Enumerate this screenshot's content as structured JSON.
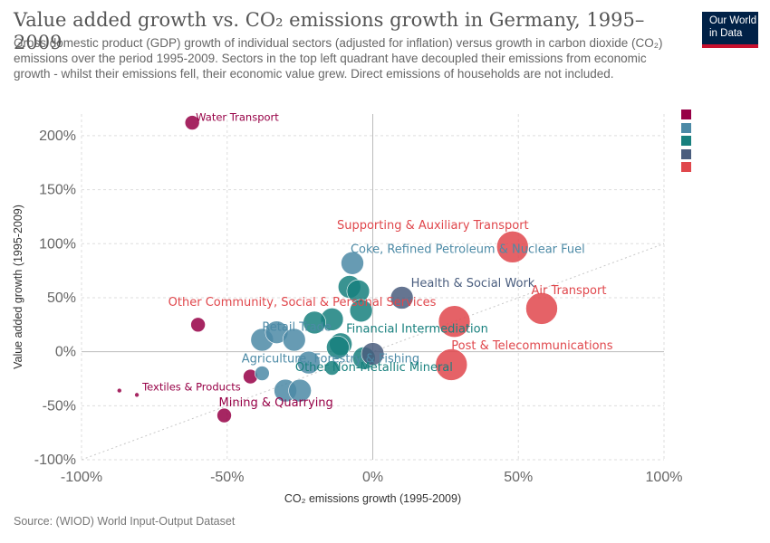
{
  "header": {
    "title": "Value added growth vs. CO₂ emissions growth in Germany, 1995–2009",
    "subtitle": "Gross domestic product (GDP) growth of individual sectors (adjusted for inflation) versus growth in carbon dioxide (CO₂) emissions over the period 1995-2009. Sectors in the top left quadrant have decoupled their emissions from economic growth - whilst their emissions fell, their economic value grew. Direct emissions of households are not included."
  },
  "logo": {
    "line1": "Our World",
    "line2": "in Data",
    "bg_color": "#002147",
    "accent_color": "#c8102e"
  },
  "footer": {
    "source": "Source: (WIOD) World Input-Output Dataset"
  },
  "legend": {
    "colors": [
      "#970046",
      "#4c8aa6",
      "#18807e",
      "#4a5d7e",
      "#e0474c"
    ]
  },
  "chart_data": {
    "type": "scatter",
    "title": "Value added growth vs. CO₂ emissions growth in Germany, 1995–2009",
    "xlabel": "CO₂ emissions growth (1995-2009)",
    "ylabel": "Value added growth (1995-2009)",
    "xlim": [
      -100,
      100
    ],
    "ylim": [
      -100,
      220
    ],
    "x_ticks": [
      -100,
      -50,
      0,
      50,
      100
    ],
    "y_ticks": [
      -100,
      -50,
      0,
      50,
      100,
      150,
      200
    ],
    "x_tick_labels": [
      "-100%",
      "-50%",
      "0%",
      "50%",
      "100%"
    ],
    "y_tick_labels": [
      "-100%",
      "-50%",
      "0%",
      "50%",
      "100%",
      "150%",
      "200%"
    ],
    "grid": true,
    "reference_line": "diagonal y = x (dotted)",
    "points": [
      {
        "x": -62,
        "y": 212,
        "size": "small",
        "color": "#970046",
        "label": "Water Transport"
      },
      {
        "x": -60,
        "y": 25,
        "size": "small",
        "color": "#970046",
        "label": ""
      },
      {
        "x": -87,
        "y": -36,
        "size": "tiny",
        "color": "#970046",
        "label": ""
      },
      {
        "x": -81,
        "y": -40,
        "size": "tiny",
        "color": "#970046",
        "label": "Textiles & Products"
      },
      {
        "x": -42,
        "y": -23,
        "size": "small",
        "color": "#970046",
        "label": ""
      },
      {
        "x": -51,
        "y": -59,
        "size": "small",
        "color": "#970046",
        "label": "Mining & Quarrying"
      },
      {
        "x": -7,
        "y": 82,
        "size": "medium",
        "color": "#4c8aa6",
        "label": "Coke, Refined Petroleum & Nuclear Fuel"
      },
      {
        "x": -38,
        "y": 11,
        "size": "medium",
        "color": "#4c8aa6",
        "label": "Retail Trade"
      },
      {
        "x": -33,
        "y": 18,
        "size": "medium",
        "color": "#4c8aa6",
        "label": ""
      },
      {
        "x": -27,
        "y": 11,
        "size": "medium",
        "color": "#4c8aa6",
        "label": ""
      },
      {
        "x": -38,
        "y": -20,
        "size": "small",
        "color": "#4c8aa6",
        "label": ""
      },
      {
        "x": -30,
        "y": -36,
        "size": "medium",
        "color": "#4c8aa6",
        "label": ""
      },
      {
        "x": -25,
        "y": -36,
        "size": "medium",
        "color": "#4c8aa6",
        "label": ""
      },
      {
        "x": -22,
        "y": -10,
        "size": "medium",
        "color": "#4c8aa6",
        "label": "Agriculture, Forestry & Fishing"
      },
      {
        "x": -8,
        "y": 60,
        "size": "medium",
        "color": "#18807e",
        "label": ""
      },
      {
        "x": -5,
        "y": 56,
        "size": "medium",
        "color": "#18807e",
        "label": ""
      },
      {
        "x": -4,
        "y": 38,
        "size": "medium",
        "color": "#18807e",
        "label": ""
      },
      {
        "x": -14,
        "y": 30,
        "size": "medium",
        "color": "#18807e",
        "label": ""
      },
      {
        "x": -20,
        "y": 27,
        "size": "medium",
        "color": "#18807e",
        "label": ""
      },
      {
        "x": -11,
        "y": 7,
        "size": "medium",
        "color": "#18807e",
        "label": "Financial Intermediation"
      },
      {
        "x": -12,
        "y": 4,
        "size": "medium",
        "color": "#18807e",
        "label": ""
      },
      {
        "x": -14,
        "y": -15,
        "size": "small",
        "color": "#18807e",
        "label": ""
      },
      {
        "x": -3,
        "y": -6,
        "size": "medium",
        "color": "#18807e",
        "label": "Other Non-Metallic Mineral"
      },
      {
        "x": 10,
        "y": 50,
        "size": "medium",
        "color": "#4a5d7e",
        "label": "Health & Social Work"
      },
      {
        "x": 0,
        "y": -2,
        "size": "medium",
        "color": "#4a5d7e",
        "label": ""
      },
      {
        "x": 48,
        "y": 97,
        "size": "large",
        "color": "#e0474c",
        "label": "Supporting & Auxiliary Transport"
      },
      {
        "x": 58,
        "y": 40,
        "size": "large",
        "color": "#e0474c",
        "label": "Air Transport"
      },
      {
        "x": 28,
        "y": 28,
        "size": "large",
        "color": "#e0474c",
        "label": "Other Community, Social & Personal Services"
      },
      {
        "x": 27,
        "y": -12,
        "size": "large",
        "color": "#e0474c",
        "label": "Post & Telecommunications"
      }
    ]
  }
}
